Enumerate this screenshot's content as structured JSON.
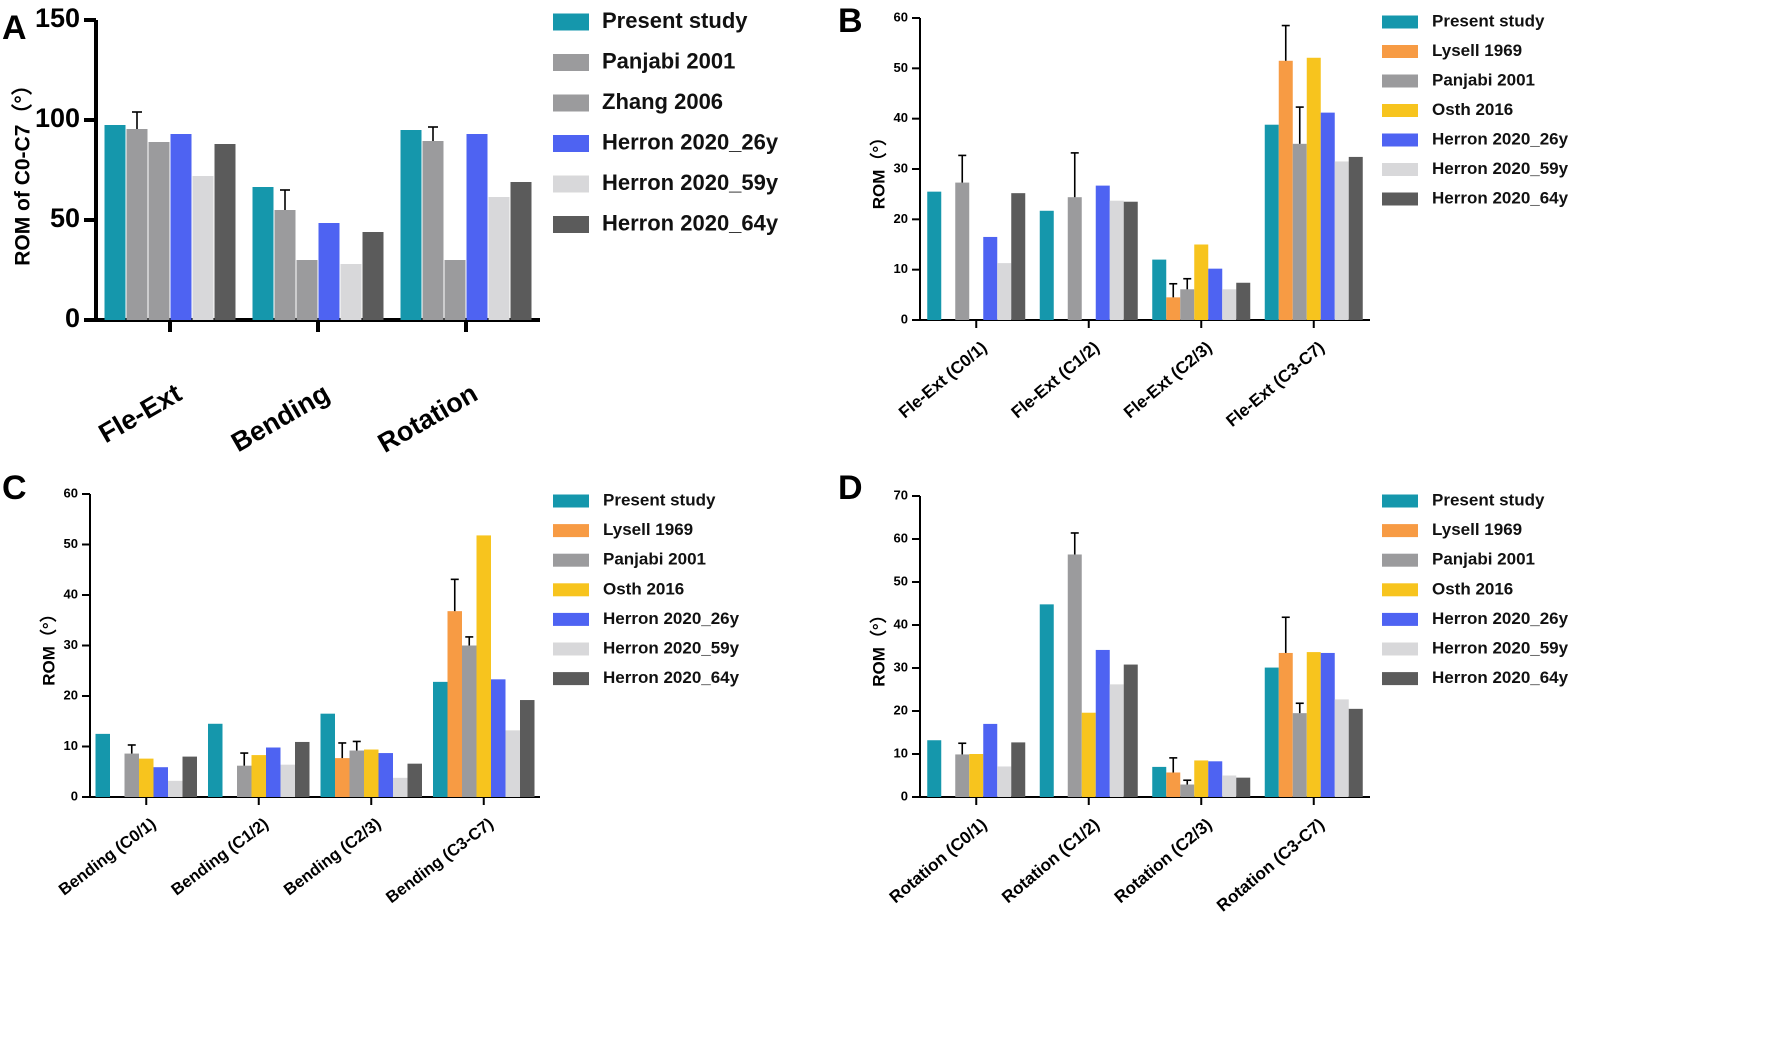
{
  "colors": {
    "Present study": "#1597AC",
    "Lysell 1969": "#F79B44",
    "Panjabi 2001": "#9B9B9D",
    "Zhang 2006": "#9B9B9D",
    "Osth 2016": "#F7C41E",
    "Herron 2020_26y": "#4E63F2",
    "Herron 2020_59y": "#D8D8DA",
    "Herron 2020_64y": "#5B5B5B"
  },
  "chart_data": [
    {
      "panel": "A",
      "type": "bar",
      "title": "",
      "xlabel": "",
      "ylabel": "ROM of C0-C7（°）",
      "ylim": [
        0,
        150
      ],
      "yticks": [
        0,
        50,
        100,
        150
      ],
      "categories": [
        "Fle-Ext",
        "Bending",
        "Rotation"
      ],
      "series": [
        {
          "name": "Present study",
          "values": [
            97.5,
            66.5,
            95
          ]
        },
        {
          "name": "Panjabi 2001",
          "values": [
            95.5,
            55,
            89.5
          ],
          "errors": [
            8.5,
            10,
            7
          ]
        },
        {
          "name": "Zhang 2006",
          "values": [
            89,
            30,
            30
          ]
        },
        {
          "name": "Herron 2020_26y",
          "values": [
            93,
            48.5,
            93
          ]
        },
        {
          "name": "Herron 2020_59y",
          "values": [
            72,
            28,
            61.5
          ]
        },
        {
          "name": "Herron 2020_64y",
          "values": [
            88,
            44,
            69
          ]
        }
      ]
    },
    {
      "panel": "B",
      "type": "bar",
      "title": "",
      "xlabel": "",
      "ylabel": "ROM（°）",
      "ylim": [
        0,
        60
      ],
      "yticks": [
        0,
        10,
        20,
        30,
        40,
        50,
        60
      ],
      "categories": [
        "Fle-Ext (C0/1)",
        "Fle-Ext (C1/2)",
        "Fle-Ext (C2/3)",
        "Fle-Ext (C3-C7)"
      ],
      "series": [
        {
          "name": "Present study",
          "values": [
            25.5,
            21.7,
            12,
            38.8
          ]
        },
        {
          "name": "Lysell 1969",
          "values": [
            null,
            null,
            4.5,
            51.5
          ],
          "errors": [
            null,
            null,
            2.7,
            7
          ]
        },
        {
          "name": "Panjabi 2001",
          "values": [
            27.3,
            24.4,
            6.1,
            35
          ],
          "errors": [
            5.4,
            8.8,
            2.1,
            7.3
          ]
        },
        {
          "name": "Osth 2016",
          "values": [
            null,
            null,
            15,
            52.1
          ]
        },
        {
          "name": "Herron 2020_26y",
          "values": [
            16.5,
            26.7,
            10.2,
            41.2
          ]
        },
        {
          "name": "Herron 2020_59y",
          "values": [
            11.3,
            23.7,
            6.1,
            31.5
          ]
        },
        {
          "name": "Herron 2020_64y",
          "values": [
            25.2,
            23.5,
            7.4,
            32.4
          ]
        }
      ]
    },
    {
      "panel": "C",
      "type": "bar",
      "title": "",
      "xlabel": "",
      "ylabel": "ROM（°）",
      "ylim": [
        0,
        60
      ],
      "yticks": [
        0,
        10,
        20,
        30,
        40,
        50,
        60
      ],
      "categories": [
        "Bending (C0/1)",
        "Bending (C1/2)",
        "Bending (C2/3)",
        "Bending (C3-C7)"
      ],
      "series": [
        {
          "name": "Present study",
          "values": [
            12.5,
            14.5,
            16.5,
            22.8
          ]
        },
        {
          "name": "Lysell 1969",
          "values": [
            null,
            null,
            7.7,
            36.8
          ],
          "errors": [
            null,
            null,
            3,
            6.3
          ]
        },
        {
          "name": "Panjabi 2001",
          "values": [
            8.6,
            6.2,
            9.2,
            30
          ],
          "errors": [
            1.7,
            2.5,
            1.8,
            1.7
          ]
        },
        {
          "name": "Osth 2016",
          "values": [
            7.6,
            8.3,
            9.4,
            51.8
          ]
        },
        {
          "name": "Herron 2020_26y",
          "values": [
            5.9,
            9.8,
            8.7,
            23.3
          ]
        },
        {
          "name": "Herron 2020_59y",
          "values": [
            3.2,
            6.4,
            3.8,
            13.2
          ]
        },
        {
          "name": "Herron 2020_64y",
          "values": [
            8,
            10.9,
            6.6,
            19.2
          ]
        }
      ]
    },
    {
      "panel": "D",
      "type": "bar",
      "title": "",
      "xlabel": "",
      "ylabel": "ROM（°）",
      "ylim": [
        0,
        70
      ],
      "yticks": [
        0,
        10,
        20,
        30,
        40,
        50,
        60,
        70
      ],
      "categories": [
        "Rotation (C0/1)",
        "Rotation (C1/2)",
        "Rotation (C2/3)",
        "Rotation (C3-C7)"
      ],
      "series": [
        {
          "name": "Present study",
          "values": [
            13.2,
            44.8,
            7,
            30.1
          ]
        },
        {
          "name": "Lysell 1969",
          "values": [
            null,
            null,
            5.7,
            33.5
          ],
          "errors": [
            null,
            null,
            3.4,
            8.3
          ]
        },
        {
          "name": "Panjabi 2001",
          "values": [
            9.9,
            56.4,
            2.9,
            19.5
          ],
          "errors": [
            2.6,
            5,
            1,
            2.3
          ]
        },
        {
          "name": "Osth 2016",
          "values": [
            10,
            19.6,
            8.5,
            33.7
          ]
        },
        {
          "name": "Herron 2020_26y",
          "values": [
            17,
            34.2,
            8.3,
            33.5
          ]
        },
        {
          "name": "Herron 2020_59y",
          "values": [
            7.1,
            26.2,
            5,
            22.7
          ]
        },
        {
          "name": "Herron 2020_64y",
          "values": [
            12.7,
            30.8,
            4.5,
            20.5
          ]
        }
      ]
    }
  ]
}
